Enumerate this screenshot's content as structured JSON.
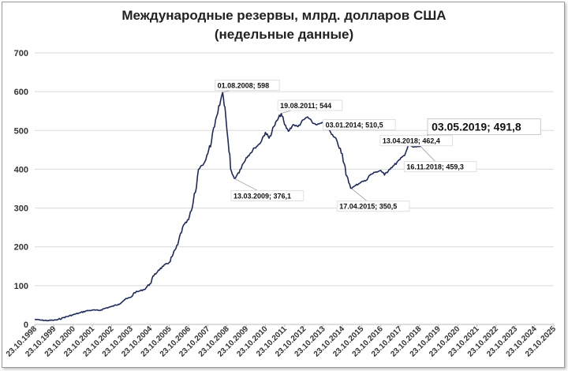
{
  "chart_data": {
    "type": "line",
    "title": "Международные резервы, млрд. долларов США",
    "subtitle": "(недельные данные)",
    "xlabel": "",
    "ylabel": "",
    "ylim": [
      0,
      700
    ],
    "yticks": [
      0,
      100,
      200,
      300,
      400,
      500,
      600,
      700
    ],
    "xlim": [
      "1998-10-23",
      "2025-10-23"
    ],
    "xtick_labels": [
      "23.10.1998",
      "23.10.1999",
      "23.10.2000",
      "23.10.2001",
      "23.10.2002",
      "23.10.2003",
      "23.10.2004",
      "23.10.2005",
      "23.10.2006",
      "23.10.2007",
      "23.10.2008",
      "23.10.2009",
      "23.10.2010",
      "23.10.2011",
      "23.10.2012",
      "23.10.2013",
      "23.10.2014",
      "23.10.2015",
      "23.10.2016",
      "23.10.2017",
      "23.10.2018",
      "23.10.2019",
      "23.10.2020",
      "23.10.2021",
      "23.10.2022",
      "23.10.2023",
      "23.10.2024",
      "23.10.2025"
    ],
    "grid": "horizontal",
    "line_color": "#1f2a5c",
    "series": [
      {
        "points": [
          [
            "1998-10-23",
            13
          ],
          [
            "1999-03-01",
            11
          ],
          [
            "1999-07-01",
            10
          ],
          [
            "1999-10-23",
            11
          ],
          [
            "2000-01-01",
            12
          ],
          [
            "2000-05-01",
            18
          ],
          [
            "2000-10-23",
            25
          ],
          [
            "2001-03-01",
            30
          ],
          [
            "2001-07-01",
            35
          ],
          [
            "2001-10-23",
            37
          ],
          [
            "2002-03-01",
            36
          ],
          [
            "2002-07-01",
            42
          ],
          [
            "2002-10-23",
            46
          ],
          [
            "2003-03-01",
            52
          ],
          [
            "2003-07-01",
            64
          ],
          [
            "2003-10-23",
            70
          ],
          [
            "2004-01-01",
            82
          ],
          [
            "2004-04-01",
            86
          ],
          [
            "2004-07-01",
            90
          ],
          [
            "2004-10-23",
            105
          ],
          [
            "2005-01-01",
            125
          ],
          [
            "2005-04-01",
            140
          ],
          [
            "2005-07-01",
            150
          ],
          [
            "2005-10-23",
            160
          ],
          [
            "2006-01-01",
            180
          ],
          [
            "2006-04-01",
            205
          ],
          [
            "2006-07-01",
            250
          ],
          [
            "2006-10-23",
            270
          ],
          [
            "2007-01-01",
            300
          ],
          [
            "2007-03-01",
            340
          ],
          [
            "2007-05-01",
            400
          ],
          [
            "2007-07-01",
            410
          ],
          [
            "2007-09-01",
            420
          ],
          [
            "2007-10-23",
            440
          ],
          [
            "2008-01-01",
            470
          ],
          [
            "2008-03-01",
            510
          ],
          [
            "2008-05-01",
            545
          ],
          [
            "2008-08-01",
            598
          ],
          [
            "2008-09-15",
            560
          ],
          [
            "2008-10-23",
            500
          ],
          [
            "2008-12-01",
            445
          ],
          [
            "2009-01-15",
            395
          ],
          [
            "2009-03-13",
            376.1
          ],
          [
            "2009-05-01",
            385
          ],
          [
            "2009-07-01",
            400
          ],
          [
            "2009-10-23",
            430
          ],
          [
            "2010-01-01",
            440
          ],
          [
            "2010-04-01",
            455
          ],
          [
            "2010-07-01",
            465
          ],
          [
            "2010-10-23",
            495
          ],
          [
            "2011-01-01",
            480
          ],
          [
            "2011-04-01",
            510
          ],
          [
            "2011-08-19",
            544
          ],
          [
            "2011-10-23",
            515
          ],
          [
            "2012-01-01",
            498
          ],
          [
            "2012-04-01",
            515
          ],
          [
            "2012-07-01",
            510
          ],
          [
            "2012-10-23",
            528
          ],
          [
            "2013-01-01",
            535
          ],
          [
            "2013-04-01",
            520
          ],
          [
            "2013-07-01",
            515
          ],
          [
            "2013-10-23",
            520
          ],
          [
            "2014-01-03",
            510.5
          ],
          [
            "2014-04-01",
            490
          ],
          [
            "2014-07-01",
            478
          ],
          [
            "2014-10-23",
            440
          ],
          [
            "2015-01-01",
            385
          ],
          [
            "2015-04-17",
            350.5
          ],
          [
            "2015-07-01",
            358
          ],
          [
            "2015-10-23",
            368
          ],
          [
            "2016-01-01",
            370
          ],
          [
            "2016-04-01",
            385
          ],
          [
            "2016-07-01",
            392
          ],
          [
            "2016-10-23",
            397
          ],
          [
            "2017-01-01",
            385
          ],
          [
            "2017-04-01",
            400
          ],
          [
            "2017-07-01",
            410
          ],
          [
            "2017-10-23",
            425
          ],
          [
            "2018-01-01",
            435
          ],
          [
            "2018-04-13",
            462.4
          ],
          [
            "2018-07-01",
            457
          ],
          [
            "2018-11-16",
            459.3
          ],
          [
            "2019-01-15",
            468
          ],
          [
            "2019-03-01",
            480
          ],
          [
            "2019-05-03",
            491.8
          ]
        ]
      }
    ],
    "annotations": [
      {
        "text": "01.08.2008; 598",
        "x": "2008-08-01",
        "y": 598,
        "label_x": "2008-03-10",
        "label_y": 630,
        "size": "small"
      },
      {
        "text": "19.08.2011; 544",
        "x": "2011-08-19",
        "y": 544,
        "label_x": "2011-06-15",
        "label_y": 578,
        "size": "small"
      },
      {
        "text": "03.01.2014; 510,5",
        "x": "2014-01-03",
        "y": 510.5,
        "label_x": "2013-10-23",
        "label_y": 528,
        "size": "small"
      },
      {
        "text": "03.05.2019; 491,8",
        "x": "2019-05-03",
        "y": 491.8,
        "label_x": "2019-04-01",
        "label_y": 530,
        "size": "big"
      },
      {
        "text": "13.04.2018; 462,4",
        "x": "2018-04-13",
        "y": 462.4,
        "label_x": "2016-10-10",
        "label_y": 487,
        "size": "small"
      },
      {
        "text": "16.11.2018; 459,3",
        "x": "2018-11-16",
        "y": 459.3,
        "label_x": "2018-01-10",
        "label_y": 420,
        "size": "small"
      },
      {
        "text": "13.03.2009; 376,1",
        "x": "2009-03-13",
        "y": 376.1,
        "label_x": "2009-01-10",
        "label_y": 345,
        "size": "small"
      },
      {
        "text": "17.04.2015; 350,5",
        "x": "2015-04-17",
        "y": 350.5,
        "label_x": "2014-07-15",
        "label_y": 318,
        "size": "small"
      }
    ]
  }
}
